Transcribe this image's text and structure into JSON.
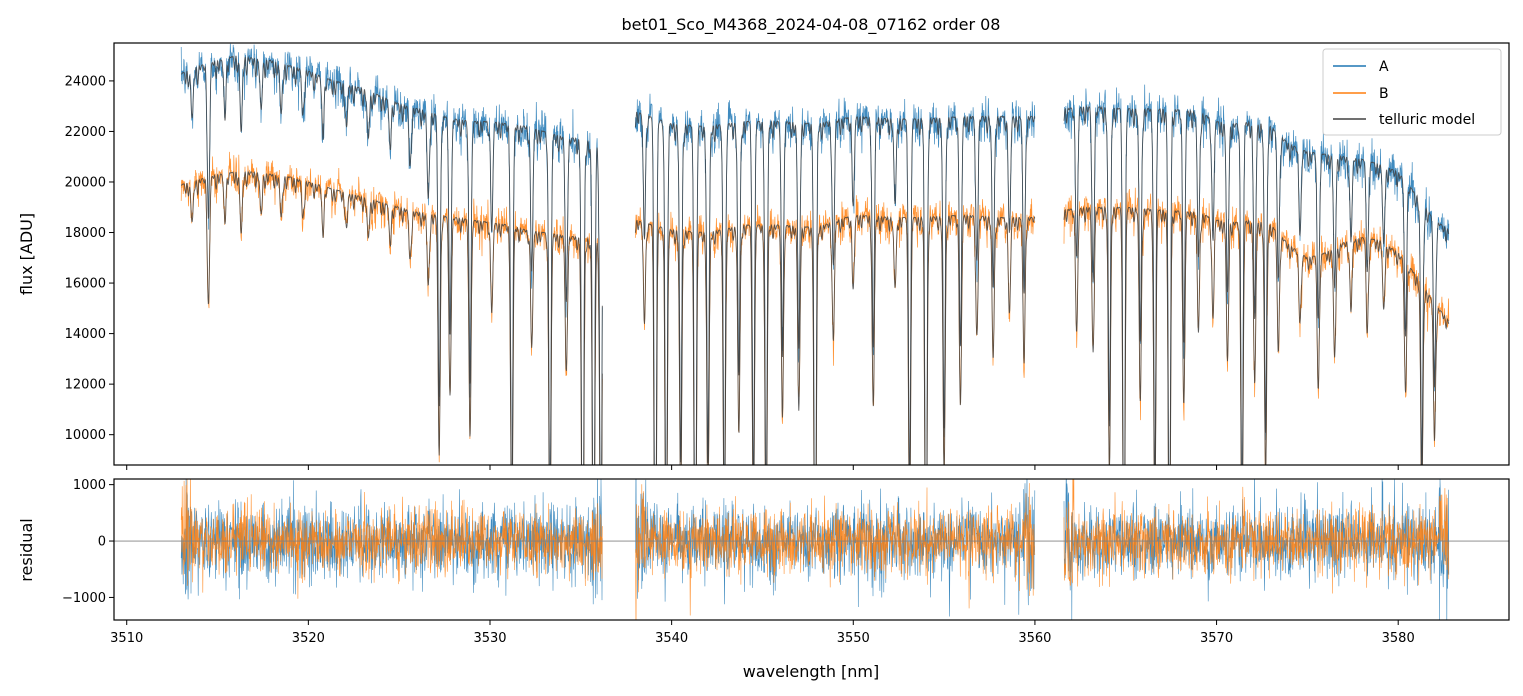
{
  "chart_data": [
    {
      "panel": "top",
      "type": "line",
      "title": "bet01_Sco_M4368_2024-04-08_07162  order 08",
      "xlabel": "",
      "ylabel": "flux [ADU]",
      "xlim": [
        3509.3,
        3586.1
      ],
      "ylim": [
        8800,
        25500
      ],
      "xticks": [
        3510,
        3520,
        3530,
        3540,
        3550,
        3560,
        3570,
        3580
      ],
      "yticks": [
        10000,
        12000,
        14000,
        16000,
        18000,
        20000,
        22000,
        24000
      ],
      "ytick_labels": [
        "10000",
        "12000",
        "14000",
        "16000",
        "18000",
        "20000",
        "22000",
        "24000"
      ],
      "grid": false,
      "legend": {
        "position": "top-right",
        "entries": [
          "A",
          "B",
          "telluric model"
        ]
      },
      "colors": {
        "A": "#1f77b4",
        "B": "#ff7f0e",
        "telluric model": "#404040"
      },
      "segments": [
        [
          3513.0,
          3536.2
        ],
        [
          3538.0,
          3560.0
        ],
        [
          3561.6,
          3582.8
        ]
      ],
      "continuum_points": {
        "A": {
          "x": [
            3513.0,
            3514.0,
            3515.0,
            3516.0,
            3517.0,
            3518.0,
            3519.0,
            3520.0,
            3521.0,
            3522.0,
            3523.0,
            3524.0,
            3525.0,
            3526.0,
            3527.0,
            3528.0,
            3529.0,
            3530.0,
            3531.0,
            3532.0,
            3533.0,
            3534.0,
            3535.0,
            3536.0,
            3538.0,
            3540.0,
            3542.0,
            3544.0,
            3546.0,
            3548.0,
            3550.0,
            3552.0,
            3554.0,
            3556.0,
            3558.0,
            3560.0,
            3561.6,
            3563.0,
            3565.0,
            3567.0,
            3569.0,
            3570.0,
            3571.0,
            3572.0,
            3573.0,
            3574.0,
            3575.0,
            3576.0,
            3577.0,
            3578.0,
            3579.0,
            3580.0,
            3581.0,
            3582.0,
            3582.8
          ],
          "y": [
            24300,
            24600,
            24800,
            25000,
            24900,
            24800,
            24600,
            24400,
            24100,
            23900,
            23700,
            23400,
            23100,
            22900,
            22700,
            22500,
            22400,
            22400,
            22300,
            22200,
            22000,
            21800,
            21700,
            21500,
            22800,
            22300,
            22200,
            22400,
            22400,
            22300,
            22600,
            22500,
            22500,
            22600,
            22600,
            22600,
            22900,
            23000,
            22900,
            22900,
            22800,
            22400,
            22300,
            22400,
            22200,
            21500,
            21200,
            21100,
            21000,
            20900,
            20700,
            20400,
            19500,
            18500,
            18100
          ]
        },
        "B": {
          "x": [
            3513.0,
            3514.0,
            3515.0,
            3516.0,
            3517.0,
            3518.0,
            3519.0,
            3520.0,
            3521.0,
            3522.0,
            3523.0,
            3524.0,
            3525.0,
            3526.0,
            3527.0,
            3528.0,
            3529.0,
            3530.0,
            3531.0,
            3532.0,
            3533.0,
            3534.0,
            3535.0,
            3536.0,
            3538.0,
            3540.0,
            3542.0,
            3544.0,
            3546.0,
            3548.0,
            3550.0,
            3552.0,
            3554.0,
            3556.0,
            3558.0,
            3560.0,
            3561.6,
            3563.0,
            3565.0,
            3567.0,
            3569.0,
            3570.0,
            3571.0,
            3572.0,
            3573.0,
            3574.0,
            3575.0,
            3576.0,
            3577.0,
            3578.0,
            3579.0,
            3580.0,
            3581.0,
            3582.0,
            3582.8
          ],
          "y": [
            19900,
            20100,
            20300,
            20400,
            20400,
            20300,
            20200,
            20000,
            19800,
            19600,
            19400,
            19200,
            19000,
            18800,
            18700,
            18600,
            18500,
            18400,
            18300,
            18100,
            18000,
            17900,
            17800,
            17700,
            18500,
            18100,
            18000,
            18300,
            18300,
            18200,
            18700,
            18600,
            18600,
            18700,
            18600,
            18600,
            18900,
            19000,
            19000,
            18900,
            18800,
            18500,
            18400,
            18500,
            18300,
            17500,
            17000,
            17200,
            17600,
            17800,
            17700,
            17200,
            16300,
            15200,
            14500
          ]
        }
      },
      "absorption_lines": {
        "wavelengths": [
          3513.6,
          3514.5,
          3515.4,
          3516.3,
          3517.4,
          3518.5,
          3519.7,
          3520.8,
          3522.1,
          3523.3,
          3524.5,
          3525.6,
          3526.6,
          3527.2,
          3527.8,
          3528.9,
          3530.1,
          3531.2,
          3532.3,
          3533.3,
          3534.2,
          3535.1,
          3535.7,
          3536.1,
          3538.5,
          3539.1,
          3539.7,
          3540.5,
          3541.3,
          3542.0,
          3542.9,
          3543.7,
          3544.5,
          3545.2,
          3546.1,
          3547.0,
          3547.9,
          3548.9,
          3550.0,
          3551.1,
          3552.3,
          3553.1,
          3554.0,
          3555.0,
          3555.9,
          3556.8,
          3557.7,
          3558.6,
          3559.4,
          3562.3,
          3563.2,
          3564.1,
          3564.9,
          3565.8,
          3566.6,
          3567.4,
          3568.2,
          3569.0,
          3569.8,
          3570.6,
          3571.4,
          3572.1,
          3572.7,
          3573.4,
          3574.6,
          3575.6,
          3576.5,
          3577.4,
          3578.3,
          3579.2,
          3580.4,
          3581.3,
          3582.0
        ],
        "depth": [
          0.08,
          0.25,
          0.08,
          0.12,
          0.08,
          0.08,
          0.07,
          0.08,
          0.07,
          0.08,
          0.07,
          0.1,
          0.15,
          0.5,
          0.38,
          0.45,
          0.18,
          0.7,
          0.25,
          0.7,
          0.3,
          0.95,
          0.95,
          0.8,
          0.2,
          0.95,
          0.8,
          0.6,
          0.95,
          0.6,
          0.7,
          0.45,
          0.65,
          0.7,
          0.4,
          0.4,
          0.95,
          0.25,
          0.15,
          0.4,
          0.15,
          0.65,
          0.9,
          0.55,
          0.4,
          0.25,
          0.3,
          0.2,
          0.3,
          0.25,
          0.3,
          0.55,
          0.85,
          0.4,
          0.65,
          0.85,
          0.4,
          0.25,
          0.2,
          0.3,
          0.7,
          0.35,
          0.55,
          0.25,
          0.15,
          0.3,
          0.25,
          0.15,
          0.2,
          0.15,
          0.3,
          0.55,
          0.35
        ]
      }
    },
    {
      "panel": "bottom",
      "type": "line",
      "title": "",
      "xlabel": "wavelength [nm]",
      "ylabel": "residual",
      "xlim": [
        3509.3,
        3586.1
      ],
      "ylim": [
        -1400,
        1100
      ],
      "xticks": [
        3510,
        3520,
        3530,
        3540,
        3550,
        3560,
        3570,
        3580
      ],
      "xtick_labels": [
        "3510",
        "3520",
        "3530",
        "3540",
        "3550",
        "3560",
        "3570",
        "3580"
      ],
      "yticks": [
        -1000,
        0,
        1000
      ],
      "ytick_labels": [
        "−1000",
        "0",
        "1000"
      ],
      "zero_line": 0,
      "grid": false,
      "colors": {
        "A": "#1f77b4",
        "B": "#ff7f0e",
        "zero_line": "#808080"
      },
      "segments": [
        [
          3513.0,
          3536.2
        ],
        [
          3538.0,
          3560.0
        ],
        [
          3561.6,
          3582.8
        ]
      ],
      "scatter_sigma": {
        "A": 330,
        "B": 280
      }
    }
  ]
}
